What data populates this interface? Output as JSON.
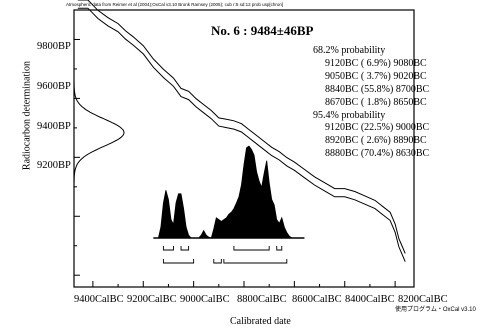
{
  "header_note": "Atmospheric data from Reimer et al (2004);OxCal v3.10 Bronk Ramsey (2005); cub r:5 sd:12 prob usp[chron]",
  "sample_title": "No. 6 : 9484±46BP",
  "prob_68": {
    "heading": "68.2% probability",
    "ranges": [
      "9120BC ( 6.9%) 9080BC",
      "9050BC ( 3.7%) 9020BC",
      "8840BC (55.8%) 8700BC",
      "8670BC ( 1.8%) 8650BC"
    ]
  },
  "prob_95": {
    "heading": "95.4% probability",
    "ranges": [
      "9120BC (22.5%) 9000BC",
      "8920BC ( 2.6%) 8890BC",
      "8880BC (70.4%) 8630BC"
    ]
  },
  "y_axis": {
    "label": "Radiocarbon determination",
    "ticks": [
      "9800BP",
      "9600BP",
      "9400BP",
      "9200BP"
    ]
  },
  "x_axis": {
    "label": "Calibrated date",
    "ticks": [
      "9400CalBC",
      "9200CalBC",
      "9000CalBC",
      "8800CalBC",
      "8600CalBC",
      "8400CalBC",
      "8200CalBC"
    ]
  },
  "footer_note": "使用プログラム・OxCal    v3.10",
  "chart_data": {
    "type": "area",
    "title": "No. 6 : 9484±46BP",
    "xlabel": "Calibrated date",
    "ylabel": "Radiocarbon determination",
    "x_unit": "CalBC",
    "y_unit": "BP",
    "xlim": [
      9475,
      8125
    ],
    "ylim": [
      8960,
      9900
    ],
    "grid": false,
    "measurement": {
      "mean_bp": 9484,
      "sd_bp": 46
    },
    "calibration_curve": {
      "cal_bc": [
        9460,
        9420,
        9380,
        9340,
        9300,
        9270,
        9240,
        9200,
        9160,
        9120,
        9080,
        9050,
        9020,
        8990,
        8960,
        8930,
        8900,
        8870,
        8840,
        8810,
        8780,
        8750,
        8720,
        8690,
        8660,
        8630,
        8600,
        8560,
        8520,
        8480,
        8440,
        8400,
        8360,
        8320,
        8280,
        8250,
        8220,
        8200,
        8185,
        8170,
        8160
      ],
      "bp_mean": [
        9920,
        9920,
        9885,
        9860,
        9840,
        9815,
        9795,
        9765,
        9720,
        9685,
        9655,
        9620,
        9610,
        9585,
        9565,
        9545,
        9520,
        9515,
        9510,
        9500,
        9480,
        9460,
        9440,
        9420,
        9405,
        9385,
        9370,
        9345,
        9320,
        9300,
        9280,
        9280,
        9270,
        9255,
        9240,
        9220,
        9200,
        9160,
        9110,
        9080,
        9060
      ],
      "band_halfwidth_bp": 14
    },
    "calibrated_distribution": {
      "cal_bc": [
        9140,
        9130,
        9120,
        9110,
        9100,
        9090,
        9080,
        9070,
        9060,
        9050,
        9040,
        9030,
        9020,
        9010,
        9000,
        8990,
        8980,
        8970,
        8960,
        8950,
        8940,
        8930,
        8920,
        8910,
        8900,
        8890,
        8880,
        8870,
        8860,
        8850,
        8840,
        8830,
        8820,
        8810,
        8800,
        8790,
        8780,
        8770,
        8760,
        8750,
        8740,
        8730,
        8720,
        8710,
        8700,
        8690,
        8680,
        8670,
        8660,
        8650,
        8640,
        8630,
        8620,
        8610
      ],
      "relative_probability": [
        0,
        0.12,
        0.38,
        0.52,
        0.42,
        0.2,
        0.15,
        0.38,
        0.48,
        0.48,
        0.32,
        0.12,
        0.03,
        0,
        0,
        0,
        0,
        0.03,
        0.08,
        0.03,
        0.01,
        0,
        0.1,
        0.22,
        0.2,
        0.18,
        0.2,
        0.22,
        0.26,
        0.28,
        0.32,
        0.38,
        0.45,
        0.58,
        0.8,
        0.98,
        1.0,
        0.96,
        0.9,
        0.72,
        0.62,
        0.55,
        0.7,
        0.84,
        0.6,
        0.42,
        0.36,
        0.2,
        0.16,
        0.22,
        0.12,
        0.06,
        0.02,
        0
      ]
    },
    "ranges_68": [
      [
        9120,
        9080
      ],
      [
        9050,
        9020
      ],
      [
        8840,
        8700
      ],
      [
        8670,
        8650
      ]
    ],
    "ranges_95": [
      [
        9120,
        9000
      ],
      [
        8920,
        8890
      ],
      [
        8880,
        8630
      ]
    ]
  }
}
